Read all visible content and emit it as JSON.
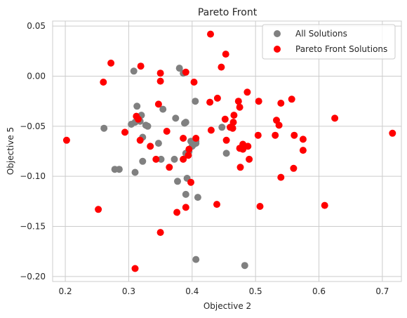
{
  "chart_data": {
    "type": "scatter",
    "title": "Pareto Front",
    "xlabel": "Objective 2",
    "ylabel": "Objective 5",
    "xlim": [
      0.18,
      0.73
    ],
    "ylim": [
      -0.205,
      0.055
    ],
    "x_ticks": [
      0.2,
      0.3,
      0.4,
      0.5,
      0.6,
      0.7
    ],
    "y_ticks": [
      -0.2,
      -0.15,
      -0.1,
      -0.05,
      0.0,
      0.05
    ],
    "x_tick_labels": [
      "0.2",
      "0.3",
      "0.4",
      "0.5",
      "0.6",
      "0.7"
    ],
    "y_tick_labels": [
      "−0.20",
      "−0.15",
      "−0.10",
      "−0.05",
      "0.00",
      "0.05"
    ],
    "grid": true,
    "legend_position": "top-right",
    "series": [
      {
        "name": "All Solutions",
        "color": "#808080",
        "points": [
          [
            0.261,
            -0.052
          ],
          [
            0.278,
            -0.093
          ],
          [
            0.285,
            -0.093
          ],
          [
            0.304,
            -0.048
          ],
          [
            0.308,
            0.005
          ],
          [
            0.31,
            -0.046
          ],
          [
            0.313,
            -0.03
          ],
          [
            0.31,
            -0.096
          ],
          [
            0.318,
            -0.045
          ],
          [
            0.32,
            -0.039
          ],
          [
            0.322,
            -0.085
          ],
          [
            0.322,
            -0.061
          ],
          [
            0.327,
            -0.049
          ],
          [
            0.33,
            -0.05
          ],
          [
            0.347,
            -0.067
          ],
          [
            0.351,
            -0.083
          ],
          [
            0.354,
            -0.033
          ],
          [
            0.372,
            -0.083
          ],
          [
            0.374,
            -0.042
          ],
          [
            0.377,
            -0.105
          ],
          [
            0.38,
            0.008
          ],
          [
            0.386,
            0.003
          ],
          [
            0.388,
            -0.047
          ],
          [
            0.39,
            -0.046
          ],
          [
            0.39,
            -0.118
          ],
          [
            0.39,
            -0.077
          ],
          [
            0.392,
            -0.102
          ],
          [
            0.395,
            -0.075
          ],
          [
            0.398,
            -0.065
          ],
          [
            0.4,
            -0.07
          ],
          [
            0.403,
            -0.068
          ],
          [
            0.405,
            -0.025
          ],
          [
            0.406,
            -0.065
          ],
          [
            0.406,
            -0.067
          ],
          [
            0.406,
            -0.183
          ],
          [
            0.409,
            -0.121
          ],
          [
            0.447,
            -0.051
          ],
          [
            0.454,
            -0.077
          ],
          [
            0.483,
            -0.189
          ]
        ]
      },
      {
        "name": "Pareto Front Solutions",
        "color": "#ff0000",
        "points": [
          [
            0.202,
            -0.064
          ],
          [
            0.252,
            -0.133
          ],
          [
            0.26,
            -0.006
          ],
          [
            0.272,
            0.013
          ],
          [
            0.294,
            -0.056
          ],
          [
            0.31,
            -0.192
          ],
          [
            0.312,
            -0.04
          ],
          [
            0.315,
            -0.043
          ],
          [
            0.318,
            -0.064
          ],
          [
            0.319,
            0.01
          ],
          [
            0.334,
            -0.07
          ],
          [
            0.343,
            -0.083
          ],
          [
            0.347,
            -0.028
          ],
          [
            0.35,
            -0.005
          ],
          [
            0.35,
            0.003
          ],
          [
            0.35,
            -0.156
          ],
          [
            0.36,
            -0.055
          ],
          [
            0.364,
            -0.091
          ],
          [
            0.376,
            -0.136
          ],
          [
            0.386,
            -0.062
          ],
          [
            0.386,
            -0.083
          ],
          [
            0.39,
            0.004
          ],
          [
            0.39,
            -0.131
          ],
          [
            0.394,
            -0.079
          ],
          [
            0.395,
            -0.073
          ],
          [
            0.398,
            -0.106
          ],
          [
            0.403,
            -0.006
          ],
          [
            0.406,
            -0.062
          ],
          [
            0.428,
            -0.026
          ],
          [
            0.429,
            0.042
          ],
          [
            0.43,
            -0.054
          ],
          [
            0.439,
            -0.128
          ],
          [
            0.44,
            -0.022
          ],
          [
            0.446,
            0.009
          ],
          [
            0.452,
            -0.043
          ],
          [
            0.453,
            0.022
          ],
          [
            0.454,
            -0.064
          ],
          [
            0.46,
            -0.051
          ],
          [
            0.464,
            -0.052
          ],
          [
            0.465,
            -0.046
          ],
          [
            0.466,
            -0.039
          ],
          [
            0.473,
            -0.025
          ],
          [
            0.475,
            -0.031
          ],
          [
            0.475,
            -0.072
          ],
          [
            0.476,
            -0.091
          ],
          [
            0.48,
            -0.073
          ],
          [
            0.48,
            -0.068
          ],
          [
            0.487,
            -0.016
          ],
          [
            0.488,
            -0.07
          ],
          [
            0.49,
            -0.083
          ],
          [
            0.504,
            -0.059
          ],
          [
            0.505,
            -0.025
          ],
          [
            0.507,
            -0.13
          ],
          [
            0.531,
            -0.059
          ],
          [
            0.533,
            -0.044
          ],
          [
            0.537,
            -0.049
          ],
          [
            0.54,
            -0.027
          ],
          [
            0.54,
            -0.101
          ],
          [
            0.557,
            -0.023
          ],
          [
            0.56,
            -0.092
          ],
          [
            0.561,
            -0.059
          ],
          [
            0.575,
            -0.063
          ],
          [
            0.575,
            -0.074
          ],
          [
            0.609,
            -0.129
          ],
          [
            0.625,
            -0.042
          ],
          [
            0.716,
            -0.057
          ]
        ]
      }
    ]
  }
}
